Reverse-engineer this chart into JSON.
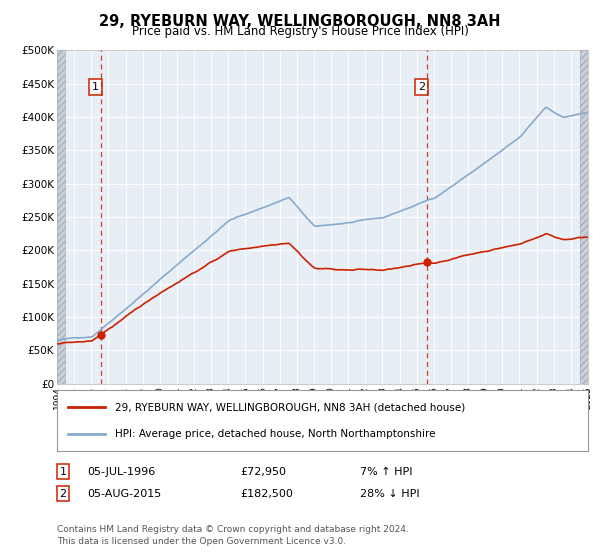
{
  "title": "29, RYEBURN WAY, WELLINGBOROUGH, NN8 3AH",
  "subtitle": "Price paid vs. HM Land Registry's House Price Index (HPI)",
  "legend_line1": "29, RYEBURN WAY, WELLINGBOROUGH, NN8 3AH (detached house)",
  "legend_line2": "HPI: Average price, detached house, North Northamptonshire",
  "annotation1_date": "05-JUL-1996",
  "annotation1_price": "£72,950",
  "annotation1_hpi": "7% ↑ HPI",
  "annotation2_date": "05-AUG-2015",
  "annotation2_price": "£182,500",
  "annotation2_hpi": "28% ↓ HPI",
  "footer": "Contains HM Land Registry data © Crown copyright and database right 2024.\nThis data is licensed under the Open Government Licence v3.0.",
  "ylim": [
    0,
    500000
  ],
  "yticks": [
    0,
    50000,
    100000,
    150000,
    200000,
    250000,
    300000,
    350000,
    400000,
    450000,
    500000
  ],
  "sale1_year": 1996.54,
  "sale1_price": 72950,
  "sale2_year": 2015.58,
  "sale2_price": 182500,
  "hpi_color": "#88aacc",
  "price_color": "#cc2200",
  "plot_bg": "#e8eef5",
  "hatch_color": "#c8d0dc",
  "hatch_line_color": "#aab0bc"
}
